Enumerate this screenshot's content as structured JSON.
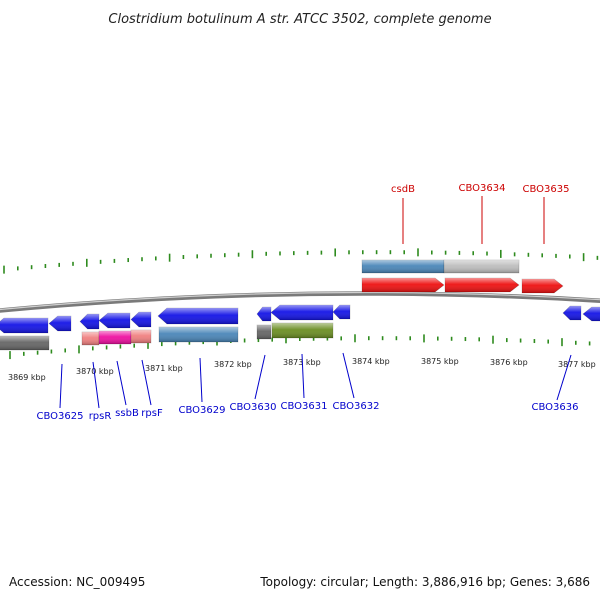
{
  "title": "Clostridium botulinum A str. ATCC 3502, complete genome",
  "footer": {
    "accession": "Accession: NC_009495",
    "summary": "Topology: circular; Length: 3,886,916 bp; Genes: 3,686"
  },
  "colors": {
    "backbone": "#7a7a7a",
    "tick": "#2e8b1e",
    "label_forward": "#cc0000",
    "label_reverse": "#0000cc",
    "blue": "#1414e6",
    "steel": "#4a86b8",
    "grey": "#666666",
    "lightgrey": "#bdbdbd",
    "red": "#ee1111",
    "pink": "#f08080",
    "magenta": "#ee10a0",
    "olive": "#6b8e23"
  },
  "scale": {
    "unit": "kbp",
    "tick_labels": [
      {
        "kbp": 3869,
        "text": "3869 kbp"
      },
      {
        "kbp": 3870,
        "text": "3870 kbp"
      },
      {
        "kbp": 3871,
        "text": "3871 kbp"
      },
      {
        "kbp": 3872,
        "text": "3872 kbp"
      },
      {
        "kbp": 3873,
        "text": "3873 kbp"
      },
      {
        "kbp": 3874,
        "text": "3874 kbp"
      },
      {
        "kbp": 3875,
        "text": "3875 kbp"
      },
      {
        "kbp": 3876,
        "text": "3876 kbp"
      },
      {
        "kbp": 3877,
        "text": "3877 kbp"
      }
    ]
  },
  "labels": {
    "forward": [
      {
        "text": "csdB",
        "gene": 0
      },
      {
        "text": "CBO3634",
        "gene": 1
      },
      {
        "text": "CBO3635",
        "gene": 2
      }
    ],
    "reverse": [
      {
        "text": "CBO3625"
      },
      {
        "text": "rpsR"
      },
      {
        "text": "ssbB"
      },
      {
        "text": "rpsF"
      },
      {
        "text": "CBO3629"
      },
      {
        "text": "CBO3630"
      },
      {
        "text": "CBO3631"
      },
      {
        "text": "CBO3632"
      },
      {
        "text": "CBO3636"
      }
    ]
  }
}
